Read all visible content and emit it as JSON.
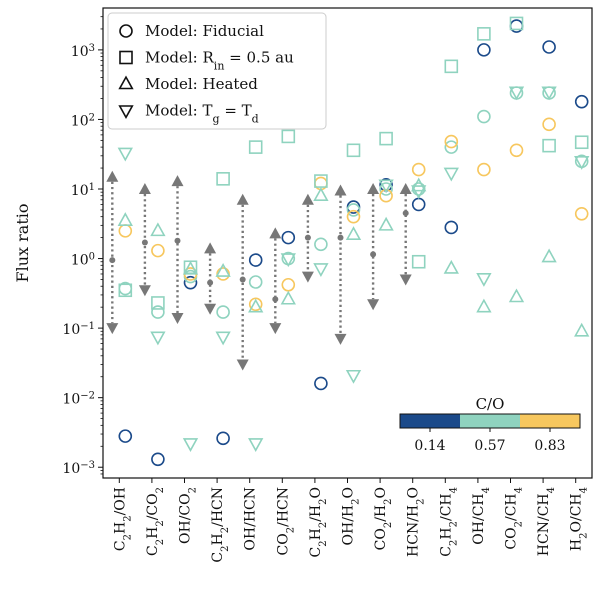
{
  "chart_data": {
    "type": "scatter",
    "title": "",
    "ylabel": "Flux ratio",
    "yscale": "log",
    "ylim": [
      0.0007,
      4000
    ],
    "yticks": [
      {
        "value": 0.001,
        "label": "10",
        "sup": "−3"
      },
      {
        "value": 0.01,
        "label": "10",
        "sup": "−2"
      },
      {
        "value": 0.1,
        "label": "10",
        "sup": "−1"
      },
      {
        "value": 1,
        "label": "10",
        "sup": "0"
      },
      {
        "value": 10,
        "label": "10",
        "sup": "1"
      },
      {
        "value": 100,
        "label": "10",
        "sup": "2"
      },
      {
        "value": 1000,
        "label": "10",
        "sup": "3"
      }
    ],
    "categories": [
      {
        "id": "C2H2/OH",
        "parts": [
          [
            "C",
            ""
          ],
          [
            "2",
            "sub"
          ],
          [
            "H",
            ""
          ],
          [
            "2",
            "sub"
          ],
          [
            "/OH",
            ""
          ]
        ]
      },
      {
        "id": "C2H2/CO2",
        "parts": [
          [
            "C",
            ""
          ],
          [
            "2",
            "sub"
          ],
          [
            "H",
            ""
          ],
          [
            "2",
            "sub"
          ],
          [
            "/CO",
            ""
          ],
          [
            "2",
            "sub"
          ]
        ]
      },
      {
        "id": "OH/CO2",
        "parts": [
          [
            "OH/CO",
            ""
          ],
          [
            "2",
            "sub"
          ]
        ]
      },
      {
        "id": "C2H2/HCN",
        "parts": [
          [
            "C",
            ""
          ],
          [
            "2",
            "sub"
          ],
          [
            "H",
            ""
          ],
          [
            "2",
            "sub"
          ],
          [
            "/HCN",
            ""
          ]
        ]
      },
      {
        "id": "OH/HCN",
        "parts": [
          [
            "OH/HCN",
            ""
          ]
        ]
      },
      {
        "id": "CO2/HCN",
        "parts": [
          [
            "CO",
            ""
          ],
          [
            "2",
            "sub"
          ],
          [
            "/HCN",
            ""
          ]
        ]
      },
      {
        "id": "C2H2/H2O",
        "parts": [
          [
            "C",
            ""
          ],
          [
            "2",
            "sub"
          ],
          [
            "H",
            ""
          ],
          [
            "2",
            "sub"
          ],
          [
            "/H",
            ""
          ],
          [
            "2",
            "sub"
          ],
          [
            "O",
            ""
          ]
        ]
      },
      {
        "id": "OH/H2O",
        "parts": [
          [
            "OH/H",
            ""
          ],
          [
            "2",
            "sub"
          ],
          [
            "O",
            ""
          ]
        ]
      },
      {
        "id": "CO2/H2O",
        "parts": [
          [
            "CO",
            ""
          ],
          [
            "2",
            "sub"
          ],
          [
            "/H",
            ""
          ],
          [
            "2",
            "sub"
          ],
          [
            "O",
            ""
          ]
        ]
      },
      {
        "id": "HCN/H2O",
        "parts": [
          [
            "HCN/H",
            ""
          ],
          [
            "2",
            "sub"
          ],
          [
            "O",
            ""
          ]
        ]
      },
      {
        "id": "C2H2/CH4",
        "parts": [
          [
            "C",
            ""
          ],
          [
            "2",
            "sub"
          ],
          [
            "H",
            ""
          ],
          [
            "2",
            "sub"
          ],
          [
            "/CH",
            ""
          ],
          [
            "4",
            "sub"
          ]
        ]
      },
      {
        "id": "OH/CH4",
        "parts": [
          [
            "OH/CH",
            ""
          ],
          [
            "4",
            "sub"
          ]
        ]
      },
      {
        "id": "CO2/CH4",
        "parts": [
          [
            "CO",
            ""
          ],
          [
            "2",
            "sub"
          ],
          [
            "/CH",
            ""
          ],
          [
            "4",
            "sub"
          ]
        ]
      },
      {
        "id": "HCN/CH4",
        "parts": [
          [
            "HCN/CH",
            ""
          ],
          [
            "4",
            "sub"
          ]
        ]
      },
      {
        "id": "H2O/CH4",
        "parts": [
          [
            "H",
            ""
          ],
          [
            "2",
            "sub"
          ],
          [
            "O/CH",
            ""
          ],
          [
            "4",
            "sub"
          ]
        ]
      }
    ],
    "colors": {
      "0.14": "#1b4a8a",
      "0.57": "#8fd3bf",
      "0.83": "#f7c75e",
      "range": "#777777"
    },
    "legend": {
      "position": "top-left",
      "entries": [
        {
          "marker": "circle",
          "parts": [
            [
              "Model: Fiducial",
              ""
            ]
          ]
        },
        {
          "marker": "square",
          "parts": [
            [
              "Model: R",
              ""
            ],
            [
              "in",
              "sub"
            ],
            [
              " = 0.5 au",
              ""
            ]
          ]
        },
        {
          "marker": "triangle-up",
          "parts": [
            [
              "Model: Heated",
              ""
            ]
          ]
        },
        {
          "marker": "triangle-down",
          "parts": [
            [
              "Model: T",
              ""
            ],
            [
              "g",
              "sub"
            ],
            [
              " = T",
              ""
            ],
            [
              "d",
              "sub"
            ]
          ]
        }
      ]
    },
    "colorbar": {
      "title": "C/O",
      "labels": [
        "0.14",
        "0.57",
        "0.83"
      ],
      "position": "lower-right"
    },
    "observed_ranges": [
      {
        "category": "C2H2/OH",
        "median": 0.95,
        "low": 0.1,
        "high": 15
      },
      {
        "category": "C2H2/CO2",
        "median": 1.7,
        "low": 0.35,
        "high": 10
      },
      {
        "category": "OH/CO2",
        "median": 1.8,
        "low": 0.14,
        "high": 13
      },
      {
        "category": "C2H2/HCN",
        "median": 0.45,
        "low": 0.19,
        "high": 1.4
      },
      {
        "category": "OH/HCN",
        "median": 0.5,
        "low": 0.03,
        "high": 7
      },
      {
        "category": "CO2/HCN",
        "median": 0.26,
        "low": 0.1,
        "high": 2.3
      },
      {
        "category": "C2H2/H2O",
        "median": 2.0,
        "low": 0.55,
        "high": 7
      },
      {
        "category": "OH/H2O",
        "median": 2.0,
        "low": 0.07,
        "high": 9.5
      },
      {
        "category": "CO2/H2O",
        "median": 1.15,
        "low": 0.22,
        "high": 10
      },
      {
        "category": "HCN/H2O",
        "median": 4.5,
        "low": 0.5,
        "high": 10
      }
    ],
    "series": [
      {
        "model": "Fiducial",
        "marker": "circle",
        "c_o": "0.14",
        "values": [
          0.0028,
          0.0013,
          0.45,
          0.0026,
          0.95,
          2.0,
          0.016,
          5.5,
          11.5,
          6.0,
          2.8,
          1000,
          2200,
          1100,
          180
        ]
      },
      {
        "model": "Fiducial",
        "marker": "circle",
        "c_o": "0.57",
        "values": [
          0.37,
          0.17,
          0.55,
          0.17,
          0.46,
          1.0,
          1.6,
          5.0,
          10.0,
          10.0,
          40,
          110,
          240,
          240,
          25
        ]
      },
      {
        "model": "Fiducial",
        "marker": "circle",
        "c_o": "0.83",
        "values": [
          2.5,
          1.3,
          0.6,
          0.6,
          0.22,
          0.42,
          12.0,
          4.0,
          8.0,
          19,
          48,
          19,
          36,
          85,
          4.4
        ]
      },
      {
        "model": "Rin = 0.5 au",
        "marker": "square",
        "c_o": "0.57",
        "values": [
          0.35,
          0.23,
          0.75,
          14,
          40,
          57,
          13,
          36,
          53,
          0.9,
          580,
          1700,
          2400,
          42,
          47
        ]
      },
      {
        "model": "Heated",
        "marker": "triangle-up",
        "c_o": "0.57",
        "values": [
          3.5,
          2.5,
          0.7,
          0.65,
          0.2,
          0.26,
          8.0,
          2.2,
          3.0,
          11.0,
          0.72,
          0.2,
          0.28,
          1.05,
          0.09
        ]
      },
      {
        "model": "Tg = Td",
        "marker": "triangle-down",
        "c_o": "0.57",
        "values": [
          33,
          0.075,
          0.0022,
          0.075,
          0.0022,
          1.0,
          0.72,
          0.021,
          11.5,
          9.5,
          17,
          0.52,
          250,
          250,
          25
        ]
      }
    ]
  }
}
